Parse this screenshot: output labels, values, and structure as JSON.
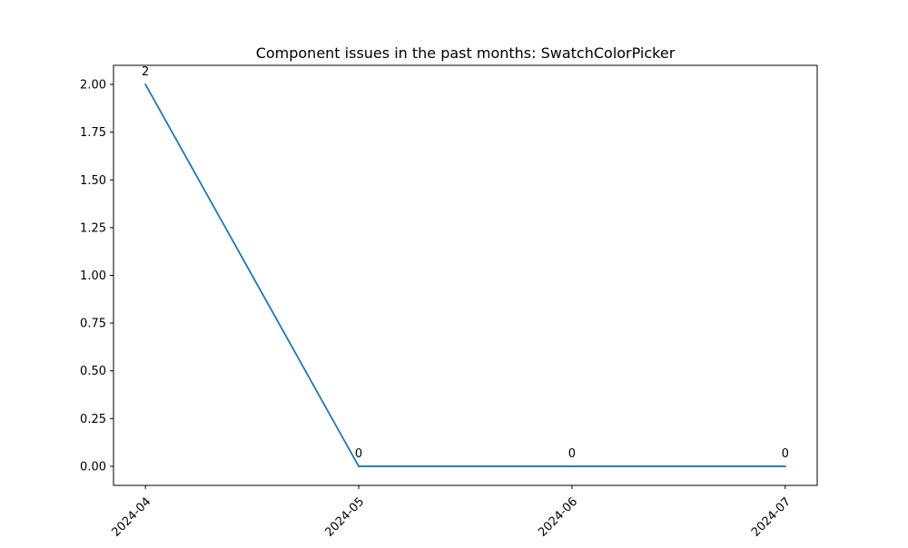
{
  "chart_data": {
    "type": "line",
    "title": "Component issues in the past months: SwatchColorPicker",
    "xlabel": "",
    "ylabel": "",
    "x": [
      "2024-04",
      "2024-05",
      "2024-06",
      "2024-07"
    ],
    "series": [
      {
        "values": [
          2,
          0,
          0,
          0
        ],
        "color": "#1f77b4"
      }
    ],
    "data_labels": [
      "2",
      "0",
      "0",
      "0"
    ],
    "ylim": [
      -0.1,
      2.1
    ],
    "y_ticks": [
      0.0,
      0.25,
      0.5,
      0.75,
      1.0,
      1.25,
      1.5,
      1.75,
      2.0
    ],
    "y_tick_labels": [
      "0.00",
      "0.25",
      "0.50",
      "0.75",
      "1.00",
      "1.25",
      "1.50",
      "1.75",
      "2.00"
    ],
    "x_tick_labels": [
      "2024-04",
      "2024-05",
      "2024-06",
      "2024-07"
    ],
    "grid": false,
    "legend": "none"
  }
}
